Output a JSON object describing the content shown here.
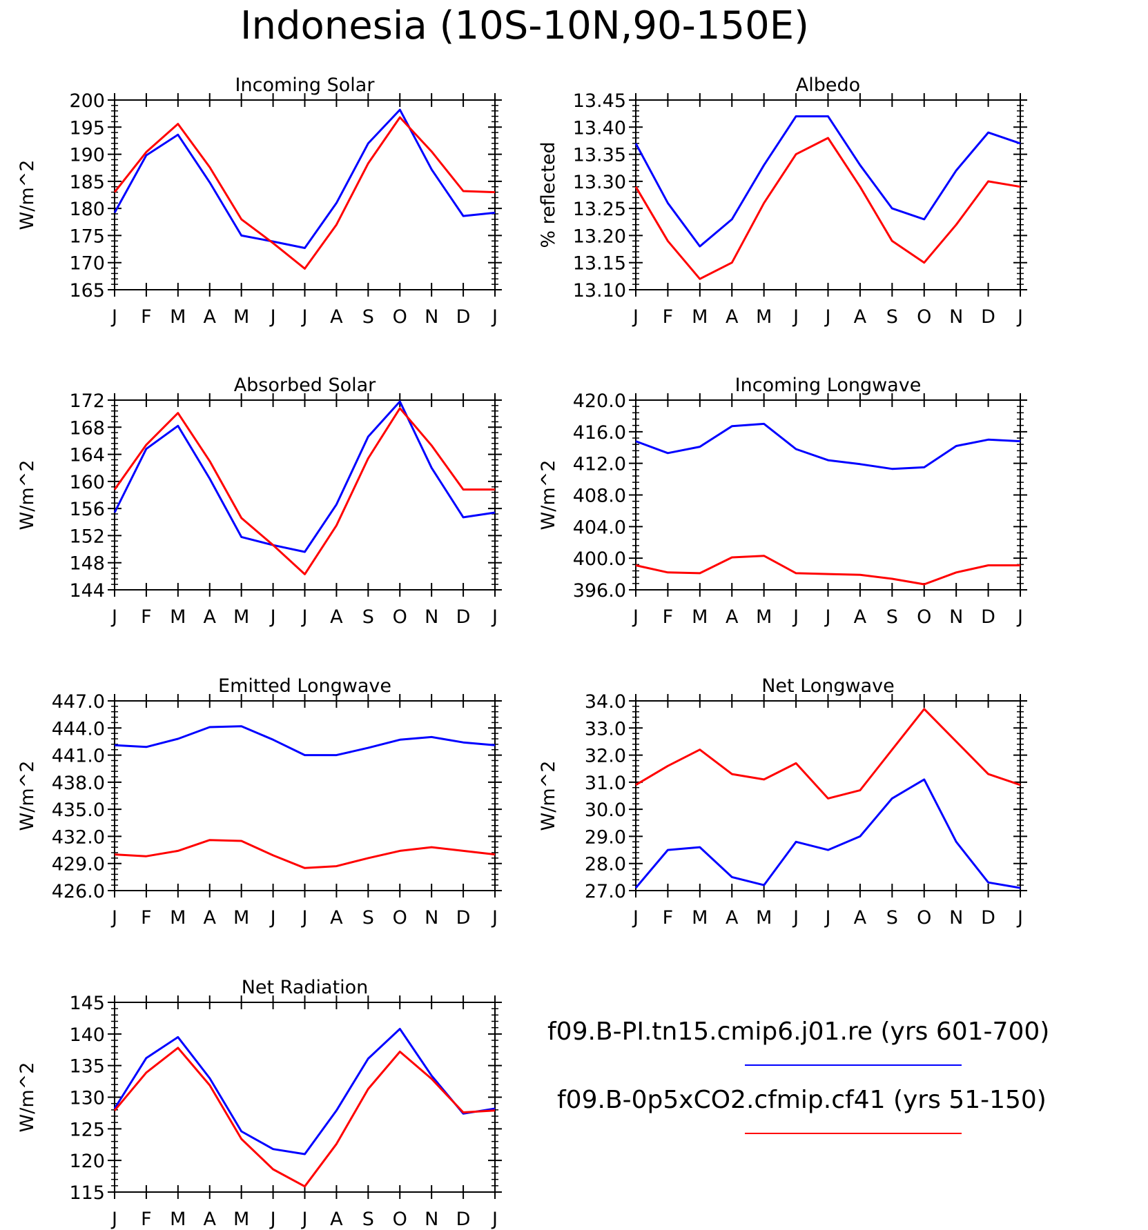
{
  "title": "Indonesia (10S-10N,90-150E)",
  "months": [
    "J",
    "F",
    "M",
    "A",
    "M",
    "J",
    "J",
    "A",
    "S",
    "O",
    "N",
    "D",
    "J"
  ],
  "colors": {
    "run1": "#0000ff",
    "run2": "#ff0000",
    "axes": "#000000"
  },
  "legend": [
    {
      "label": "f09.B-PI.tn15.cmip6.j01.re (yrs 601-700)",
      "color": "#0000ff"
    },
    {
      "label": "f09.B-0p5xCO2.cfmip.cf41 (yrs 51-150)",
      "color": "#ff0000"
    }
  ],
  "chart_data": [
    {
      "type": "line",
      "title": "Incoming Solar",
      "ylabel": "W/m^2",
      "ylim": [
        165,
        200
      ],
      "yticks": [
        "165",
        "170",
        "175",
        "180",
        "185",
        "190",
        "195",
        "200"
      ],
      "x": [
        "J",
        "F",
        "M",
        "A",
        "M",
        "J",
        "J",
        "A",
        "S",
        "O",
        "N",
        "D",
        "J"
      ],
      "series": [
        {
          "color": "#0000ff",
          "values": [
            179.2,
            189.8,
            193.6,
            184.8,
            175.0,
            173.9,
            172.7,
            181.0,
            192.0,
            198.2,
            187.2,
            178.6,
            179.2
          ]
        },
        {
          "color": "#ff0000",
          "values": [
            183.0,
            190.4,
            195.6,
            187.6,
            178.0,
            173.6,
            168.9,
            177.0,
            188.3,
            196.8,
            190.5,
            183.2,
            183.0
          ]
        }
      ]
    },
    {
      "type": "line",
      "title": "Albedo",
      "ylabel": "% reflected",
      "ylim": [
        13.1,
        13.45
      ],
      "yticks": [
        "13.10",
        "13.15",
        "13.20",
        "13.25",
        "13.30",
        "13.35",
        "13.40",
        "13.45"
      ],
      "x": [
        "J",
        "F",
        "M",
        "A",
        "M",
        "J",
        "J",
        "A",
        "S",
        "O",
        "N",
        "D",
        "J"
      ],
      "series": [
        {
          "color": "#0000ff",
          "values": [
            13.37,
            13.26,
            13.18,
            13.23,
            13.33,
            13.42,
            13.42,
            13.33,
            13.25,
            13.23,
            13.32,
            13.39,
            13.37
          ]
        },
        {
          "color": "#ff0000",
          "values": [
            13.29,
            13.19,
            13.12,
            13.15,
            13.26,
            13.35,
            13.38,
            13.29,
            13.19,
            13.15,
            13.22,
            13.3,
            13.29
          ]
        }
      ]
    },
    {
      "type": "line",
      "title": "Absorbed Solar",
      "ylabel": "W/m^2",
      "ylim": [
        144,
        172
      ],
      "yticks": [
        "144",
        "148",
        "152",
        "156",
        "160",
        "164",
        "168",
        "172"
      ],
      "x": [
        "J",
        "F",
        "M",
        "A",
        "M",
        "J",
        "J",
        "A",
        "S",
        "O",
        "N",
        "D",
        "J"
      ],
      "series": [
        {
          "color": "#0000ff",
          "values": [
            155.4,
            164.8,
            168.2,
            160.4,
            151.8,
            150.6,
            149.6,
            156.6,
            166.6,
            171.8,
            162.0,
            154.7,
            155.4
          ]
        },
        {
          "color": "#ff0000",
          "values": [
            158.8,
            165.4,
            170.1,
            163.0,
            154.6,
            150.6,
            146.3,
            153.5,
            163.4,
            170.8,
            165.3,
            158.8,
            158.8
          ]
        }
      ]
    },
    {
      "type": "line",
      "title": "Incoming Longwave",
      "ylabel": "W/m^2",
      "ylim": [
        396,
        420
      ],
      "yticks": [
        "396.0",
        "400.0",
        "404.0",
        "408.0",
        "412.0",
        "416.0",
        "420.0"
      ],
      "x": [
        "J",
        "F",
        "M",
        "A",
        "M",
        "J",
        "J",
        "A",
        "S",
        "O",
        "N",
        "D",
        "J"
      ],
      "series": [
        {
          "color": "#0000ff",
          "values": [
            414.8,
            413.3,
            414.1,
            416.7,
            417.0,
            413.8,
            412.4,
            411.9,
            411.3,
            411.5,
            414.2,
            415.0,
            414.8
          ]
        },
        {
          "color": "#ff0000",
          "values": [
            399.1,
            398.2,
            398.1,
            400.1,
            400.3,
            398.1,
            398.0,
            397.9,
            397.4,
            396.7,
            398.2,
            399.1,
            399.1
          ]
        }
      ]
    },
    {
      "type": "line",
      "title": "Emitted Longwave",
      "ylabel": "W/m^2",
      "ylim": [
        426,
        447
      ],
      "yticks": [
        "426.0",
        "429.0",
        "432.0",
        "435.0",
        "438.0",
        "441.0",
        "444.0",
        "447.0"
      ],
      "x": [
        "J",
        "F",
        "M",
        "A",
        "M",
        "J",
        "J",
        "A",
        "S",
        "O",
        "N",
        "D",
        "J"
      ],
      "series": [
        {
          "color": "#0000ff",
          "values": [
            442.1,
            441.9,
            442.8,
            444.1,
            444.2,
            442.7,
            441.0,
            441.0,
            441.8,
            442.7,
            443.0,
            442.4,
            442.1
          ]
        },
        {
          "color": "#ff0000",
          "values": [
            430.0,
            429.8,
            430.4,
            431.6,
            431.5,
            429.9,
            428.5,
            428.7,
            429.6,
            430.4,
            430.8,
            430.4,
            430.0
          ]
        }
      ]
    },
    {
      "type": "line",
      "title": "Net Longwave",
      "ylabel": "W/m^2",
      "ylim": [
        27,
        34
      ],
      "yticks": [
        "27.0",
        "28.0",
        "29.0",
        "30.0",
        "31.0",
        "32.0",
        "33.0",
        "34.0"
      ],
      "x": [
        "J",
        "F",
        "M",
        "A",
        "M",
        "J",
        "J",
        "A",
        "S",
        "O",
        "N",
        "D",
        "J"
      ],
      "series": [
        {
          "color": "#0000ff",
          "values": [
            27.1,
            28.5,
            28.6,
            27.5,
            27.2,
            28.8,
            28.5,
            29.0,
            30.4,
            31.1,
            28.8,
            27.3,
            27.1
          ]
        },
        {
          "color": "#ff0000",
          "values": [
            30.9,
            31.6,
            32.2,
            31.3,
            31.1,
            31.7,
            30.4,
            30.7,
            32.2,
            33.7,
            32.5,
            31.3,
            30.9
          ]
        }
      ]
    },
    {
      "type": "line",
      "title": "Net Radiation",
      "ylabel": "W/m^2",
      "ylim": [
        115,
        145
      ],
      "yticks": [
        "115",
        "120",
        "125",
        "130",
        "135",
        "140",
        "145"
      ],
      "x": [
        "J",
        "F",
        "M",
        "A",
        "M",
        "J",
        "J",
        "A",
        "S",
        "O",
        "N",
        "D",
        "J"
      ],
      "series": [
        {
          "color": "#0000ff",
          "values": [
            128.2,
            136.2,
            139.5,
            133.0,
            124.6,
            121.8,
            121.0,
            127.9,
            136.1,
            140.8,
            133.4,
            127.4,
            128.2
          ]
        },
        {
          "color": "#ff0000",
          "values": [
            127.9,
            133.9,
            137.8,
            131.9,
            123.4,
            118.6,
            115.9,
            122.6,
            131.3,
            137.2,
            132.9,
            127.6,
            127.9
          ]
        }
      ]
    }
  ]
}
